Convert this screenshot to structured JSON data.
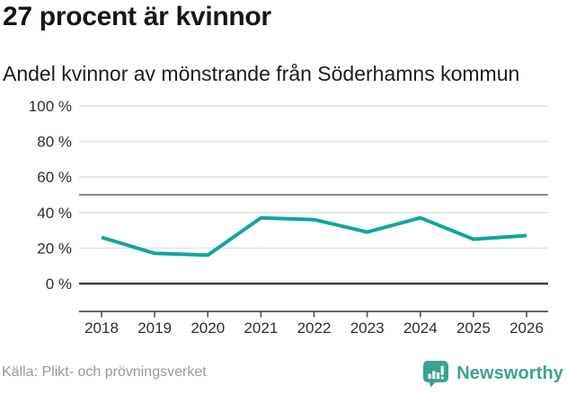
{
  "header": {
    "title": "27 procent är kvinnor",
    "subtitle": "Andel kvinnor av mönstrande från Söderhamns kommun"
  },
  "chart_data": {
    "type": "line",
    "title": "27 procent är kvinnor",
    "subtitle": "Andel kvinnor av mönstrande från Söderhamns kommun",
    "x": [
      2018,
      2019,
      2020,
      2021,
      2022,
      2023,
      2024,
      2025,
      2026
    ],
    "xtick_labels": [
      "2018",
      "2019",
      "2020",
      "2021",
      "2022",
      "2023",
      "2024",
      "2025",
      "2026"
    ],
    "series": [
      {
        "name": "Andel kvinnor av mönstrande (%)",
        "values": [
          26,
          17,
          16,
          37,
          36,
          29,
          37,
          25,
          27
        ]
      }
    ],
    "ylim": [
      0,
      100
    ],
    "yticks": [
      {
        "value": 0,
        "label": "0 %"
      },
      {
        "value": 20,
        "label": "20 %"
      },
      {
        "value": 40,
        "label": "40 %"
      },
      {
        "value": 60,
        "label": "60 %"
      },
      {
        "value": 80,
        "label": "80 %"
      },
      {
        "value": 100,
        "label": "100 %"
      }
    ],
    "reference_line": 50,
    "grid": true,
    "legend": "none"
  },
  "footer": {
    "source": "Källa: Plikt- och prövningsverket",
    "brand": "Newsworthy"
  },
  "icons": {
    "brand_icon": "bar-chart-speech-bubble-icon"
  },
  "colors": {
    "line": "#0ea79b",
    "brand": "#3aa392",
    "grid": "#e4e4e4",
    "reference": "#8e8e8e",
    "zero_line": "#3c3c3c",
    "axis": "#4f4f4f",
    "tick_label": "#2e2e2e",
    "title": "#161616",
    "subtitle": "#1d1d1d",
    "source": "#989898"
  }
}
